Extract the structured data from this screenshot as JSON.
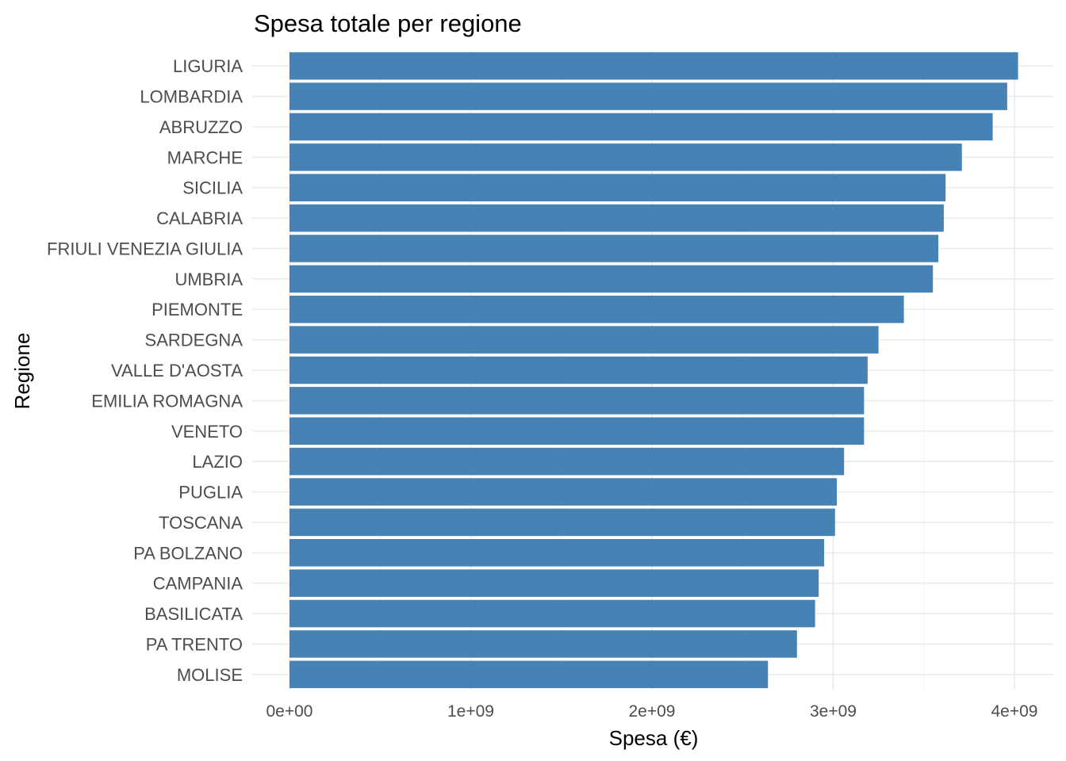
{
  "chart_data": {
    "type": "bar",
    "orientation": "horizontal",
    "title": "Spesa totale per regione",
    "xlabel": "Spesa (€)",
    "ylabel": "Regione",
    "bar_color": "#4682b4",
    "grid": true,
    "legend": "none",
    "xlim": [
      0,
      4160000000
    ],
    "x_ticks": [
      {
        "value": 0,
        "label": "0e+00"
      },
      {
        "value": 1000000000,
        "label": "1e+09"
      },
      {
        "value": 2000000000,
        "label": "2e+09"
      },
      {
        "value": 3000000000,
        "label": "3e+09"
      },
      {
        "value": 4000000000,
        "label": "4e+09"
      }
    ],
    "categories": [
      "LIGURIA",
      "LOMBARDIA",
      "ABRUZZO",
      "MARCHE",
      "SICILIA",
      "CALABRIA",
      "FRIULI VENEZIA GIULIA",
      "UMBRIA",
      "PIEMONTE",
      "SARDEGNA",
      "VALLE D'AOSTA",
      "EMILIA ROMAGNA",
      "VENETO",
      "LAZIO",
      "PUGLIA",
      "TOSCANA",
      "PA BOLZANO",
      "CAMPANIA",
      "BASILICATA",
      "PA TRENTO",
      "MOLISE"
    ],
    "values": [
      4020000000,
      3960000000,
      3880000000,
      3710000000,
      3620000000,
      3610000000,
      3580000000,
      3550000000,
      3390000000,
      3250000000,
      3190000000,
      3170000000,
      3170000000,
      3060000000,
      3020000000,
      3010000000,
      2950000000,
      2920000000,
      2900000000,
      2800000000,
      2640000000
    ]
  }
}
